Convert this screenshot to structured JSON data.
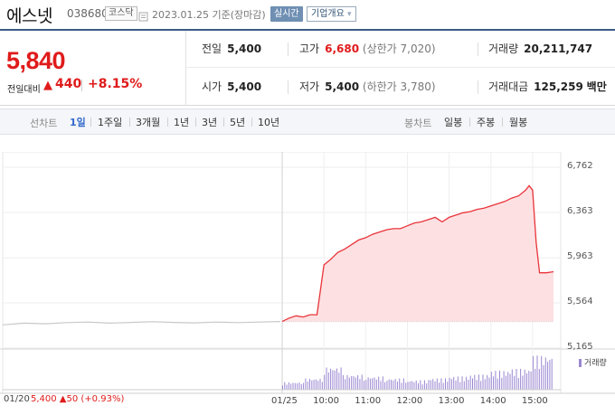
{
  "header": {
    "name": "에스넷",
    "code": "038680",
    "market": "코스닥",
    "base_date": "2023.01.25 기준(장마감)",
    "realtime_label": "실시간",
    "company_label": "기업개요",
    "company_chevron": "▾"
  },
  "price": {
    "current": "5,840",
    "change_label": "전일대비",
    "change_arrow": "▲",
    "change_value": "440",
    "change_rate": "+8.15%"
  },
  "stats": {
    "prev_close_label": "전일",
    "prev_close": "5,400",
    "high_label": "고가",
    "high": "6,680",
    "upper_limit": "(상한가 7,020)",
    "volume_label": "거래량",
    "volume": "20,211,747",
    "open_label": "시가",
    "open": "5,400",
    "low_label": "저가",
    "low": "5,400",
    "lower_limit": "(하한가 3,780)",
    "amount_label": "거래대금",
    "amount": "125,259",
    "amount_unit": "백만"
  },
  "tabs": {
    "line_title": "선차트",
    "periods": [
      "1일",
      "1주일",
      "3개월",
      "1년",
      "3년",
      "5년",
      "10년"
    ],
    "active": "1일",
    "candle_title": "봉차트",
    "candles": [
      "일봉",
      "주봉",
      "월봉"
    ]
  },
  "colors": {
    "up": "#e01b1b",
    "price_line": "#e8343a",
    "price_fill": "#fde0e2",
    "prev_line": "#c8c8c8",
    "volume": "#9b87d2",
    "accent": "#3b5a86"
  },
  "chart_data": {
    "type": "line",
    "yticks": [
      "6,762",
      "6,363",
      "5,963",
      "5,564",
      "5,165"
    ],
    "ylim": [
      5165,
      6762
    ],
    "xticks": [
      "01/20",
      "01/25",
      "10:00",
      "11:00",
      "12:00",
      "13:00",
      "14:00",
      "15:00"
    ],
    "baseline": 5400,
    "prev_day_label": "01/20",
    "prev_day_info": "5,400 ▲50 (+0.93%)",
    "volume_legend": "거래량",
    "series": [
      {
        "name": "01/20",
        "x": [
          "09:00",
          "09:30",
          "10:00",
          "10:30",
          "11:00",
          "11:30",
          "12:00",
          "12:30",
          "13:00",
          "13:30",
          "14:00",
          "14:30",
          "15:00",
          "15:30"
        ],
        "values": [
          5370,
          5385,
          5380,
          5390,
          5395,
          5385,
          5392,
          5398,
          5392,
          5388,
          5395,
          5390,
          5395,
          5400
        ]
      },
      {
        "name": "01/25",
        "x": [
          "09:00",
          "09:10",
          "09:20",
          "09:30",
          "09:40",
          "09:50",
          "10:00",
          "10:10",
          "10:20",
          "10:30",
          "10:40",
          "10:50",
          "11:00",
          "11:10",
          "11:20",
          "11:30",
          "11:40",
          "11:50",
          "12:00",
          "12:10",
          "12:20",
          "12:30",
          "12:40",
          "12:50",
          "13:00",
          "13:10",
          "13:20",
          "13:30",
          "13:40",
          "13:50",
          "14:00",
          "14:10",
          "14:20",
          "14:30",
          "14:40",
          "14:50",
          "14:55",
          "15:00",
          "15:05",
          "15:10",
          "15:20",
          "15:30"
        ],
        "values": [
          5400,
          5430,
          5450,
          5440,
          5460,
          5460,
          5900,
          5950,
          6010,
          6040,
          6080,
          6120,
          6140,
          6170,
          6190,
          6210,
          6220,
          6220,
          6245,
          6270,
          6280,
          6300,
          6320,
          6280,
          6320,
          6340,
          6360,
          6370,
          6390,
          6400,
          6420,
          6440,
          6460,
          6490,
          6510,
          6560,
          6600,
          6560,
          6100,
          5830,
          5830,
          5840
        ]
      }
    ],
    "volume": {
      "x": [
        "09:00",
        "09:30",
        "10:00",
        "10:30",
        "11:00",
        "11:30",
        "12:00",
        "12:30",
        "13:00",
        "13:30",
        "14:00",
        "14:30",
        "15:00",
        "15:30"
      ],
      "values": [
        0.2,
        0.3,
        0.6,
        0.4,
        0.35,
        0.3,
        0.25,
        0.3,
        0.35,
        0.4,
        0.5,
        0.55,
        0.9,
        0.6
      ]
    }
  }
}
